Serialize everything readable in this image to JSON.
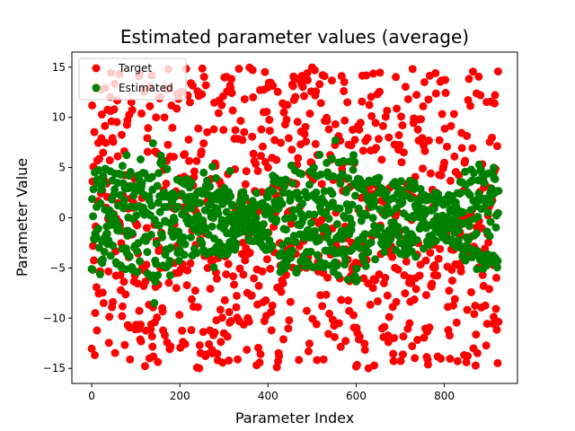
{
  "chart_data": {
    "type": "scatter",
    "title": "Estimated parameter values (average)",
    "xlabel": "Parameter Index",
    "ylabel": "Parameter Value",
    "xlim": [
      -45,
      966
    ],
    "ylim": [
      -16.5,
      16.5
    ],
    "xticks": [
      0,
      200,
      400,
      600,
      800
    ],
    "yticks": [
      -15,
      -10,
      -5,
      0,
      5,
      10,
      15
    ],
    "grid": false,
    "legend_position": "top-left",
    "n_points": 924,
    "series": [
      {
        "name": "Target",
        "color": "#ff0000",
        "distribution": "uniform",
        "range": [
          -15,
          15
        ]
      },
      {
        "name": "Estimated",
        "color": "#008000",
        "distribution": "banded",
        "range": [
          -8.5,
          8.5
        ]
      }
    ]
  }
}
